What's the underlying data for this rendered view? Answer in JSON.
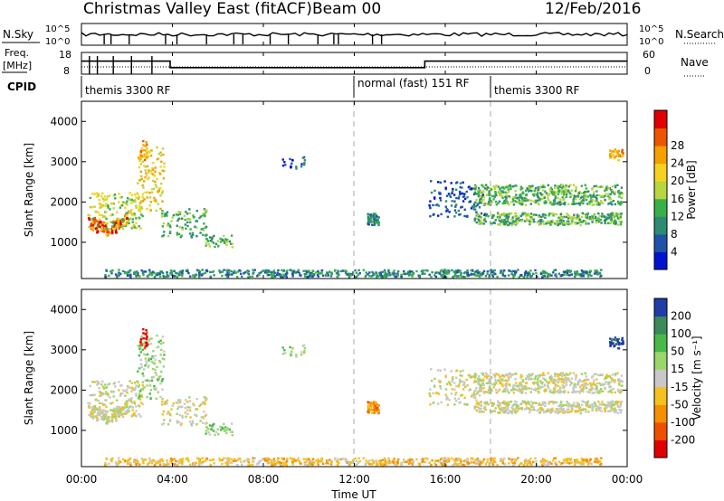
{
  "header": {
    "station": "Christmas Valley East (fitACF)",
    "beam": "Beam 00",
    "date": "12/Feb/2016"
  },
  "chart_data": [
    {
      "type": "line",
      "name": "noise-panel",
      "left_label": "N.Sky",
      "right_label": "N.Search",
      "left_ticks": [
        "10^5",
        "10^0"
      ],
      "right_ticks": [
        "10^5",
        "10^0"
      ]
    },
    {
      "type": "line",
      "name": "frequency-panel",
      "left_label": "Freq.",
      "left_unit": "[MHz]",
      "right_label": "Nave",
      "left_ticks": [
        "18",
        "8"
      ],
      "right_ticks": [
        "60",
        "0"
      ],
      "freq_steps": [
        [
          0,
          14
        ],
        [
          3.9,
          11
        ],
        [
          15.1,
          14
        ],
        [
          24,
          14
        ]
      ]
    },
    {
      "type": "table",
      "name": "cpid-panel",
      "label": "CPID",
      "segments": [
        {
          "label": "themis 3300 RF",
          "start": 0.0
        },
        {
          "label": "normal (fast) 151 RF",
          "start": 12.0
        },
        {
          "label": "themis 3300 RF",
          "start": 18.0
        }
      ]
    },
    {
      "type": "heatmap",
      "name": "power-panel",
      "ylabel": "Slant Range [km]",
      "ylim": [
        100,
        4500
      ],
      "y_ticks": [
        1000,
        2000,
        3000,
        4000
      ],
      "xlim": [
        0,
        24
      ],
      "colorbar": {
        "label": "Power [dB]",
        "ticks": [
          4,
          8,
          12,
          16,
          20,
          24,
          28
        ],
        "colors": [
          "#0014d0",
          "#1f53a8",
          "#2f8a74",
          "#38b04a",
          "#b8d640",
          "#f5d220",
          "#f5a000",
          "#ee5500",
          "#e00000"
        ]
      }
    },
    {
      "type": "heatmap",
      "name": "velocity-panel",
      "ylabel": "Slant Range [km]",
      "ylim": [
        100,
        4500
      ],
      "y_ticks": [
        1000,
        2000,
        3000,
        4000
      ],
      "xlim": [
        0,
        24
      ],
      "colorbar": {
        "label": "Velocity [m s⁻¹]",
        "ticks": [
          "200",
          "100",
          "50",
          "15",
          "-15",
          "-50",
          "-100",
          "-200"
        ],
        "colors": [
          "#1f3ca8",
          "#3a8a5a",
          "#48b84a",
          "#9ad66a",
          "#c8c8c8",
          "#f5c020",
          "#f59000",
          "#ee5000",
          "#e00000"
        ]
      }
    }
  ],
  "xaxis": {
    "label": "Time UT",
    "ticks": [
      "00:00",
      "04:00",
      "08:00",
      "12:00",
      "16:00",
      "20:00",
      "00:00"
    ]
  }
}
